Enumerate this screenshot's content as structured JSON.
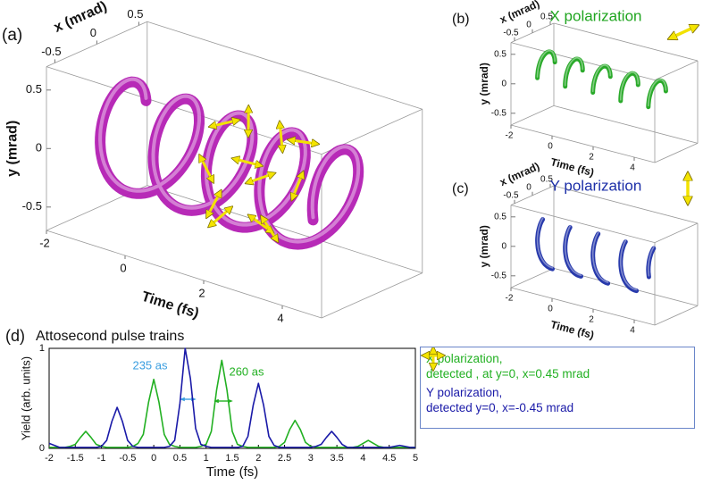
{
  "chart_data": [
    {
      "type": "isosurface",
      "label": "(a)",
      "xlabel": "x (mrad)",
      "ylabel": "y (mrad)",
      "zlabel": "Time (fs)",
      "xlim": [
        -0.6,
        0.6
      ],
      "xticks": [
        -0.5,
        0,
        0.5
      ],
      "ylim": [
        -0.7,
        0.7
      ],
      "yticks": [
        0.5,
        0,
        -0.5
      ],
      "zlim": [
        -2,
        5
      ],
      "zticks": [
        -2,
        0,
        2,
        4
      ],
      "color": "#b31fb3"
    },
    {
      "type": "isosurface",
      "label": "(b)",
      "title": "X polarization",
      "xlabel": "x (mrad)",
      "ylabel": "y (mrad)",
      "zlabel": "Time (fs)",
      "xlim": [
        -0.6,
        0.6
      ],
      "xticks": [
        -0.5,
        0,
        0.5
      ],
      "ylim": [
        -0.7,
        0.7
      ],
      "yticks": [
        0.5,
        0,
        -0.5
      ],
      "zlim": [
        -2,
        5
      ],
      "zticks": [
        -2,
        0,
        2,
        4
      ],
      "color": "#1fa51f"
    },
    {
      "type": "isosurface",
      "label": "(c)",
      "title": "Y polarization",
      "xlabel": "x (mrad)",
      "ylabel": "y (mrad)",
      "zlabel": "Time (fs)",
      "xlim": [
        -0.6,
        0.6
      ],
      "xticks": [
        -0.5,
        0,
        0.5
      ],
      "ylim": [
        -0.7,
        0.7
      ],
      "yticks": [
        0.5,
        0,
        -0.5
      ],
      "zlim": [
        -2,
        5
      ],
      "zticks": [
        -2,
        0,
        2,
        4
      ],
      "color": "#1c2fa8"
    },
    {
      "type": "line",
      "label": "(d)",
      "title": "Attosecond pulse trains",
      "xlabel": "Time (fs)",
      "ylabel": "Yield (arb. units)",
      "x": [
        -2,
        -1.9,
        -1.8,
        -1.7,
        -1.6,
        -1.5,
        -1.4,
        -1.3,
        -1.2,
        -1.1,
        -1,
        -0.9,
        -0.8,
        -0.7,
        -0.6,
        -0.5,
        -0.4,
        -0.3,
        -0.2,
        -0.1,
        0,
        0.1,
        0.2,
        0.3,
        0.4,
        0.5,
        0.6,
        0.7,
        0.8,
        0.9,
        1,
        1.1,
        1.2,
        1.3,
        1.4,
        1.5,
        1.6,
        1.7,
        1.8,
        1.9,
        2,
        2.1,
        2.2,
        2.3,
        2.4,
        2.5,
        2.6,
        2.7,
        2.8,
        2.9,
        3,
        3.1,
        3.2,
        3.3,
        3.4,
        3.5,
        3.6,
        3.7,
        3.8,
        3.9,
        4,
        4.1,
        4.2,
        4.3,
        4.4,
        4.5,
        4.6,
        4.7,
        4.8,
        4.9,
        5
      ],
      "series": [
        {
          "name": "X polarization,\ndetected , at y=0, x=0.45 mrad",
          "color": "#22b022",
          "values": [
            0.01,
            0.01,
            0.01,
            0.01,
            0.02,
            0.04,
            0.11,
            0.17,
            0.11,
            0.04,
            0.02,
            0.01,
            0.01,
            0.01,
            0.01,
            0.01,
            0.02,
            0.05,
            0.14,
            0.46,
            0.69,
            0.46,
            0.14,
            0.04,
            0.02,
            0.01,
            0.01,
            0.01,
            0.01,
            0.02,
            0.04,
            0.17,
            0.58,
            0.88,
            0.58,
            0.17,
            0.04,
            0.02,
            0.01,
            0.01,
            0.01,
            0.01,
            0.01,
            0.01,
            0.02,
            0.06,
            0.19,
            0.28,
            0.19,
            0.06,
            0.02,
            0.01,
            0.01,
            0.01,
            0.01,
            0.01,
            0.01,
            0.01,
            0.01,
            0.02,
            0.05,
            0.08,
            0.05,
            0.02,
            0.01,
            0.01,
            0.01,
            0.01,
            0.01,
            0.01,
            0.01
          ]
        },
        {
          "name": "Y polarization,\ndetected y=0, x=-0.45 mrad",
          "color": "#1a1aa8",
          "values": [
            0.05,
            0.03,
            0.01,
            0.01,
            0.01,
            0.01,
            0.01,
            0.01,
            0.01,
            0.01,
            0.02,
            0.08,
            0.27,
            0.41,
            0.27,
            0.08,
            0.02,
            0.01,
            0.01,
            0.01,
            0.01,
            0.01,
            0.01,
            0.02,
            0.08,
            0.45,
            1,
            0.7,
            0.2,
            0.04,
            0.02,
            0.01,
            0.01,
            0.01,
            0.01,
            0.01,
            0.01,
            0.02,
            0.12,
            0.43,
            0.65,
            0.43,
            0.12,
            0.03,
            0.01,
            0.01,
            0.01,
            0.01,
            0.01,
            0.01,
            0.01,
            0.02,
            0.04,
            0.11,
            0.17,
            0.11,
            0.04,
            0.01,
            0.01,
            0.01,
            0.01,
            0.01,
            0.01,
            0.01,
            0.01,
            0.01,
            0.02,
            0.03,
            0.02,
            0.01,
            0.01
          ]
        }
      ],
      "xlim": [
        -2,
        5
      ],
      "xticks": [
        -2,
        -1.5,
        -1,
        -0.5,
        0,
        0.5,
        1,
        1.5,
        2,
        2.5,
        3,
        3.5,
        4,
        4.5,
        5
      ],
      "ylim": [
        0,
        1
      ],
      "yticks": [
        0,
        1
      ],
      "annotations": [
        "235 as",
        "260 as"
      ]
    }
  ]
}
